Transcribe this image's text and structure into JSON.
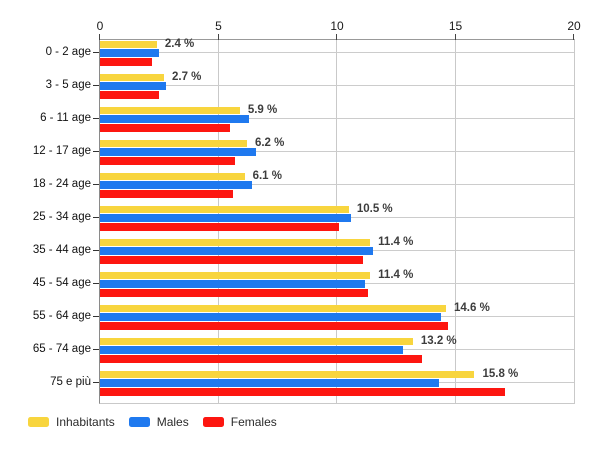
{
  "chart_data": {
    "type": "bar",
    "orientation": "horizontal",
    "title": "",
    "categories": [
      "0 - 2 age",
      "3 - 5 age",
      "6 - 11 age",
      "12 - 17 age",
      "18 - 24 age",
      "25 - 34 age",
      "35 - 44 age",
      "45 - 54 age",
      "55 - 64 age",
      "65 - 74 age",
      "75 e più"
    ],
    "series": [
      {
        "name": "Inhabitants",
        "color": "#F8D53E",
        "values": [
          2.4,
          2.7,
          5.9,
          6.2,
          6.1,
          10.5,
          11.4,
          11.4,
          14.6,
          13.2,
          15.8
        ]
      },
      {
        "name": "Males",
        "color": "#1F79EF",
        "values": [
          2.5,
          2.8,
          6.3,
          6.6,
          6.4,
          10.6,
          11.5,
          11.2,
          14.4,
          12.8,
          14.3
        ]
      },
      {
        "name": "Females",
        "color": "#FD1610",
        "values": [
          2.2,
          2.5,
          5.5,
          5.7,
          5.6,
          10.1,
          11.1,
          11.3,
          14.7,
          13.6,
          17.1
        ]
      }
    ],
    "bar_labels": [
      "2.4 %",
      "2.7 %",
      "5.9 %",
      "6.2 %",
      "6.1 %",
      "10.5 %",
      "11.4 %",
      "11.4 %",
      "14.6 %",
      "13.2 %",
      "15.8 %"
    ],
    "bar_labels_series": "Inhabitants",
    "x_axis": {
      "min": 0,
      "max": 20,
      "ticks": [
        0,
        5,
        10,
        15,
        20
      ],
      "position": "top"
    },
    "grid": true,
    "legend": {
      "position": "bottom-left",
      "entries": [
        "Inhabitants",
        "Males",
        "Females"
      ]
    }
  },
  "colors": {
    "grid": "#c9c9c9",
    "axis": "#999999",
    "category_text": "#111111",
    "bar_label_text": "#3d3d3d",
    "background": "#ffffff"
  }
}
